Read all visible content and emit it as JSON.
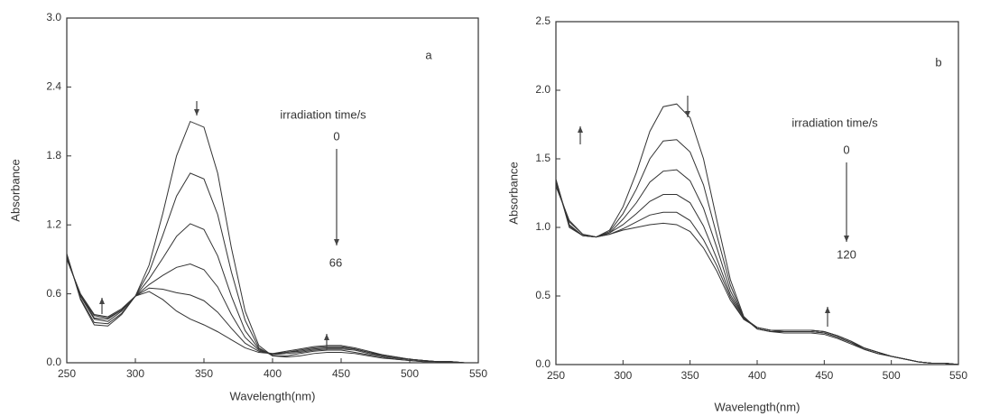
{
  "chart_data": [
    {
      "type": "line",
      "panel_label": "a",
      "x_label": "Wavelength(nm)",
      "y_label": "Absorbance",
      "annotation_title": "irradiation time/s",
      "annotation_start": "0",
      "annotation_end": "66",
      "xlim": [
        250,
        550
      ],
      "xticks": [
        250,
        300,
        350,
        400,
        450,
        500,
        550
      ],
      "ylim": [
        0,
        3
      ],
      "yticks": [
        {
          "value": 0,
          "label": "0.0"
        },
        0.6,
        1.2,
        1.8,
        2.4,
        {
          "value": 3,
          "label": "3.0"
        }
      ],
      "x": [
        250,
        260,
        270,
        280,
        290,
        300,
        310,
        320,
        330,
        340,
        350,
        360,
        370,
        380,
        390,
        400,
        410,
        420,
        430,
        440,
        450,
        460,
        470,
        480,
        490,
        500,
        510,
        520,
        530,
        540,
        550
      ],
      "series": [
        {
          "color": "#333333",
          "values": [
            0.95,
            0.55,
            0.33,
            0.32,
            0.42,
            0.58,
            0.85,
            1.3,
            1.8,
            2.1,
            2.05,
            1.65,
            1.0,
            0.45,
            0.15,
            0.06,
            0.05,
            0.06,
            0.08,
            0.09,
            0.09,
            0.08,
            0.06,
            0.04,
            0.03,
            0.02,
            0.01,
            0.01,
            0,
            0,
            0
          ]
        },
        {
          "color": "#333333",
          "values": [
            0.94,
            0.56,
            0.35,
            0.34,
            0.43,
            0.58,
            0.79,
            1.11,
            1.45,
            1.65,
            1.6,
            1.29,
            0.79,
            0.37,
            0.13,
            0.06,
            0.06,
            0.08,
            0.1,
            0.11,
            0.11,
            0.09,
            0.07,
            0.05,
            0.03,
            0.02,
            0.01,
            0.01,
            0,
            0,
            0
          ]
        },
        {
          "color": "#333333",
          "values": [
            0.92,
            0.58,
            0.38,
            0.36,
            0.45,
            0.58,
            0.73,
            0.91,
            1.1,
            1.21,
            1.16,
            0.93,
            0.58,
            0.28,
            0.12,
            0.07,
            0.08,
            0.09,
            0.11,
            0.12,
            0.12,
            0.11,
            0.08,
            0.06,
            0.04,
            0.03,
            0.02,
            0.01,
            0.01,
            0,
            0
          ]
        },
        {
          "color": "#333333",
          "values": [
            0.91,
            0.59,
            0.39,
            0.38,
            0.46,
            0.58,
            0.68,
            0.76,
            0.83,
            0.86,
            0.81,
            0.66,
            0.42,
            0.22,
            0.11,
            0.07,
            0.09,
            0.1,
            0.12,
            0.13,
            0.13,
            0.12,
            0.09,
            0.06,
            0.04,
            0.03,
            0.02,
            0.01,
            0.01,
            0,
            0
          ]
        },
        {
          "color": "#333333",
          "values": [
            0.91,
            0.59,
            0.41,
            0.39,
            0.46,
            0.58,
            0.65,
            0.64,
            0.61,
            0.59,
            0.54,
            0.44,
            0.3,
            0.17,
            0.1,
            0.08,
            0.09,
            0.11,
            0.13,
            0.14,
            0.14,
            0.12,
            0.09,
            0.07,
            0.05,
            0.03,
            0.02,
            0.01,
            0.01,
            0,
            0
          ]
        },
        {
          "color": "#333333",
          "values": [
            0.9,
            0.6,
            0.42,
            0.4,
            0.47,
            0.58,
            0.62,
            0.55,
            0.45,
            0.38,
            0.33,
            0.27,
            0.2,
            0.13,
            0.09,
            0.08,
            0.1,
            0.12,
            0.14,
            0.15,
            0.15,
            0.13,
            0.1,
            0.07,
            0.05,
            0.03,
            0.02,
            0.01,
            0.01,
            0,
            0
          ]
        }
      ]
    },
    {
      "type": "line",
      "panel_label": "b",
      "x_label": "Wavelength(nm)",
      "y_label": "Absorbance",
      "annotation_title": "irradiation time/s",
      "annotation_start": "0",
      "annotation_end": "120",
      "xlim": [
        250,
        550
      ],
      "xticks": [
        250,
        300,
        350,
        400,
        450,
        500,
        550
      ],
      "ylim": [
        0,
        2.5
      ],
      "yticks": [
        {
          "value": 0,
          "label": "0.0"
        },
        0.5,
        {
          "value": 1,
          "label": "1.0"
        },
        1.5,
        {
          "value": 2,
          "label": "2.0"
        },
        2.5
      ],
      "x": [
        250,
        260,
        270,
        280,
        290,
        300,
        310,
        320,
        330,
        340,
        350,
        360,
        370,
        380,
        390,
        400,
        410,
        420,
        430,
        440,
        450,
        460,
        470,
        480,
        490,
        500,
        510,
        520,
        530,
        540,
        550
      ],
      "series": [
        {
          "color": "#333333",
          "values": [
            1.3,
            1.05,
            0.95,
            0.93,
            0.98,
            1.15,
            1.4,
            1.7,
            1.88,
            1.9,
            1.8,
            1.5,
            1.05,
            0.62,
            0.35,
            0.26,
            0.24,
            0.23,
            0.23,
            0.23,
            0.22,
            0.19,
            0.15,
            0.11,
            0.08,
            0.06,
            0.04,
            0.02,
            0.01,
            0.01,
            0
          ]
        },
        {
          "color": "#333333",
          "values": [
            1.32,
            1.04,
            0.95,
            0.93,
            0.97,
            1.1,
            1.28,
            1.5,
            1.63,
            1.64,
            1.55,
            1.31,
            0.94,
            0.58,
            0.34,
            0.26,
            0.24,
            0.24,
            0.24,
            0.24,
            0.23,
            0.2,
            0.16,
            0.11,
            0.08,
            0.06,
            0.04,
            0.02,
            0.01,
            0.01,
            0
          ]
        },
        {
          "color": "#333333",
          "values": [
            1.33,
            1.02,
            0.94,
            0.93,
            0.96,
            1.06,
            1.18,
            1.33,
            1.41,
            1.42,
            1.34,
            1.14,
            0.85,
            0.54,
            0.34,
            0.27,
            0.25,
            0.24,
            0.24,
            0.24,
            0.23,
            0.2,
            0.16,
            0.12,
            0.09,
            0.06,
            0.04,
            0.02,
            0.01,
            0.01,
            0
          ]
        },
        {
          "color": "#333333",
          "values": [
            1.34,
            1.01,
            0.94,
            0.93,
            0.96,
            1.02,
            1.1,
            1.19,
            1.24,
            1.24,
            1.18,
            1.01,
            0.77,
            0.51,
            0.34,
            0.27,
            0.25,
            0.25,
            0.25,
            0.25,
            0.24,
            0.21,
            0.17,
            0.12,
            0.09,
            0.06,
            0.04,
            0.02,
            0.01,
            0.01,
            0
          ]
        },
        {
          "color": "#333333",
          "values": [
            1.35,
            1.01,
            0.94,
            0.93,
            0.95,
            0.99,
            1.04,
            1.09,
            1.11,
            1.11,
            1.05,
            0.91,
            0.72,
            0.49,
            0.33,
            0.27,
            0.25,
            0.25,
            0.25,
            0.25,
            0.24,
            0.21,
            0.17,
            0.12,
            0.09,
            0.06,
            0.04,
            0.02,
            0.01,
            0.01,
            0
          ]
        },
        {
          "color": "#333333",
          "values": [
            1.35,
            1.0,
            0.94,
            0.93,
            0.95,
            0.98,
            1.0,
            1.02,
            1.03,
            1.02,
            0.97,
            0.85,
            0.68,
            0.47,
            0.33,
            0.27,
            0.25,
            0.25,
            0.25,
            0.25,
            0.24,
            0.21,
            0.17,
            0.12,
            0.09,
            0.06,
            0.04,
            0.02,
            0.01,
            0.01,
            0
          ]
        }
      ]
    }
  ]
}
